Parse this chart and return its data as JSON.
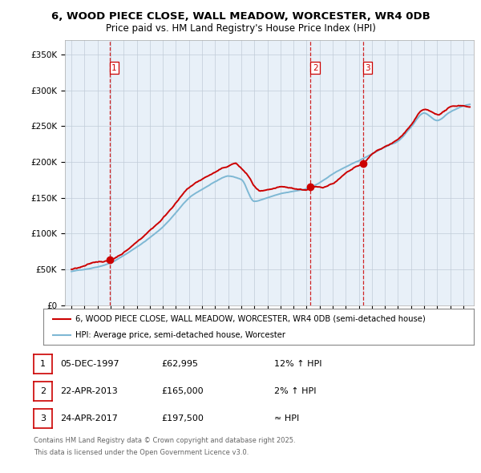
{
  "title": "6, WOOD PIECE CLOSE, WALL MEADOW, WORCESTER, WR4 0DB",
  "subtitle": "Price paid vs. HM Land Registry's House Price Index (HPI)",
  "legend_line1": "6, WOOD PIECE CLOSE, WALL MEADOW, WORCESTER, WR4 0DB (semi-detached house)",
  "legend_line2": "HPI: Average price, semi-detached house, Worcester",
  "footer1": "Contains HM Land Registry data © Crown copyright and database right 2025.",
  "footer2": "This data is licensed under the Open Government Licence v3.0.",
  "transactions": [
    {
      "num": 1,
      "date": "05-DEC-1997",
      "price": "£62,995",
      "note": "12% ↑ HPI",
      "x_year": 1997.92
    },
    {
      "num": 2,
      "date": "22-APR-2013",
      "price": "£165,000",
      "note": "2% ↑ HPI",
      "x_year": 2013.31
    },
    {
      "num": 3,
      "date": "24-APR-2017",
      "price": "£197,500",
      "note": "≈ HPI",
      "x_year": 2017.31
    }
  ],
  "ylim": [
    0,
    370000
  ],
  "xlim": [
    1994.5,
    2025.8
  ],
  "yticks": [
    0,
    50000,
    100000,
    150000,
    200000,
    250000,
    300000,
    350000
  ],
  "ytick_labels": [
    "£0",
    "£50K",
    "£100K",
    "£150K",
    "£200K",
    "£250K",
    "£300K",
    "£350K"
  ],
  "red_color": "#cc0000",
  "blue_color": "#7eb8d4",
  "chart_bg": "#e8f0f8",
  "grid_color": "#c0ccd8",
  "bg_color": "#ffffff",
  "vline_color": "#cc0000",
  "transaction_dot_color": "#cc0000"
}
